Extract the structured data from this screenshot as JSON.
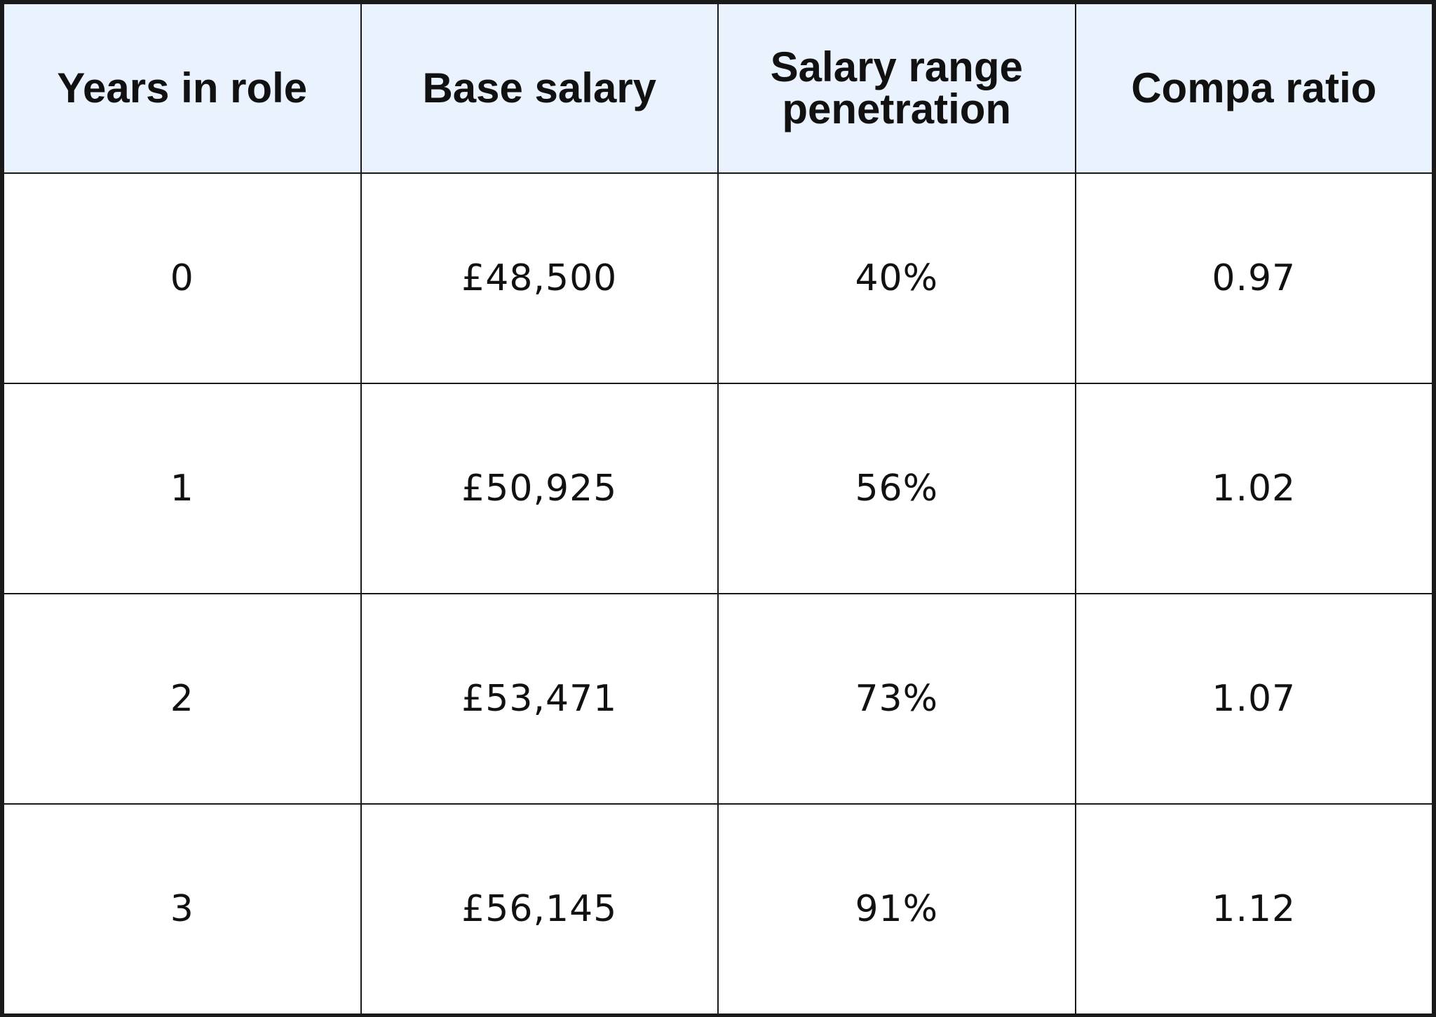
{
  "table": {
    "headers": [
      "Years in role",
      "Base salary",
      "Salary range penetration",
      "Compa ratio"
    ],
    "rows": [
      [
        "0",
        "£48,500",
        "40%",
        "0.97"
      ],
      [
        "1",
        "£50,925",
        "56%",
        "1.02"
      ],
      [
        "2",
        "£53,471",
        "73%",
        "1.07"
      ],
      [
        "3",
        "£56,145",
        "91%",
        "1.12"
      ]
    ]
  },
  "colors": {
    "header_background": "#eaf2fe",
    "border": "#1a1a1a",
    "text": "#111111"
  }
}
